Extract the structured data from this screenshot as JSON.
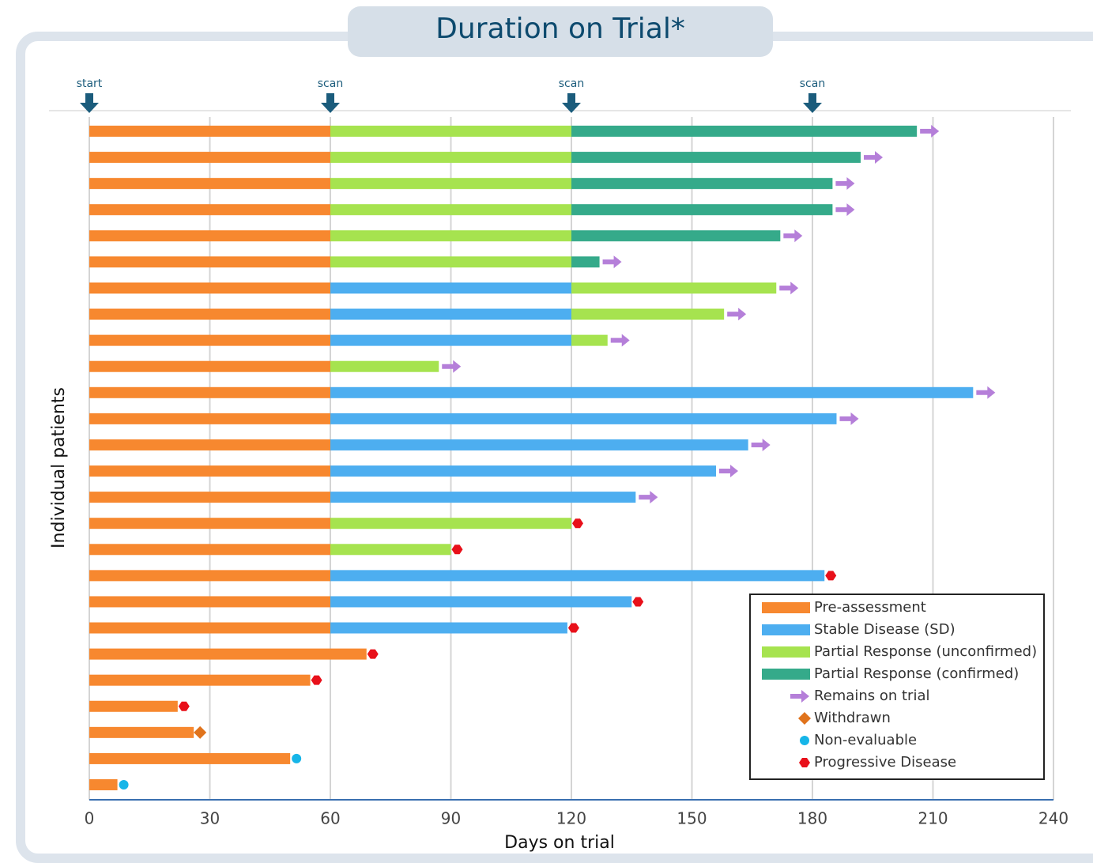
{
  "chart_data": {
    "type": "swimmer",
    "title": "Duration on Trial*",
    "x_label": "Days on trial",
    "y_label": "Individual patients",
    "xlim": [
      0,
      240
    ],
    "xticks": [
      0,
      30,
      60,
      90,
      120,
      150,
      180,
      210,
      240
    ],
    "grid": true,
    "annotations": [
      {
        "text": "start",
        "x": 0
      },
      {
        "text": "scan",
        "x": 60
      },
      {
        "text": "scan",
        "x": 120
      },
      {
        "text": "scan",
        "x": 180
      }
    ],
    "series": [
      {
        "name": "Pre-assessment",
        "color": "#f7882f",
        "values": [
          60,
          60,
          60,
          60,
          60,
          60,
          60,
          60,
          60,
          60,
          60,
          60,
          60,
          60,
          60,
          60,
          60,
          60,
          60,
          60,
          69,
          55,
          22,
          26,
          50,
          7
        ]
      },
      {
        "name": "Stable Disease (SD)",
        "color": "#4daef0",
        "values": [
          null,
          null,
          null,
          null,
          null,
          null,
          60,
          60,
          60,
          null,
          160,
          126,
          104,
          96,
          76,
          null,
          null,
          123,
          75,
          59,
          null,
          null,
          null,
          null,
          null,
          null
        ]
      },
      {
        "name": "Partial Response (unconfirmed)",
        "color": "#a6e34f",
        "values": [
          60,
          60,
          60,
          60,
          60,
          60,
          51,
          38,
          9,
          27,
          null,
          null,
          null,
          null,
          null,
          60,
          30,
          null,
          null,
          null,
          null,
          null,
          null,
          null,
          null,
          null
        ]
      },
      {
        "name": "Partial Response (confirmed)",
        "color": "#35aa8a",
        "values": [
          86,
          72,
          65,
          65,
          52,
          7,
          null,
          null,
          null,
          null,
          null,
          null,
          null,
          null,
          null,
          null,
          null,
          null,
          null,
          null,
          null,
          null,
          null,
          null,
          null,
          null
        ]
      }
    ],
    "markers": [
      {
        "name": "Remains on trial",
        "color": "#b57fd9",
        "shape": "arrow"
      },
      {
        "name": "Withdrawn",
        "color": "#e0731c",
        "shape": "diamond"
      },
      {
        "name": "Non-evaluable",
        "color": "#16b5e8",
        "shape": "circle"
      },
      {
        "name": "Progressive Disease",
        "color": "#e8101a",
        "shape": "hexagon"
      }
    ],
    "outcome": [
      0,
      0,
      0,
      0,
      0,
      0,
      0,
      0,
      0,
      0,
      0,
      0,
      0,
      0,
      0,
      3,
      3,
      3,
      3,
      3,
      3,
      3,
      3,
      1,
      2,
      2
    ]
  }
}
